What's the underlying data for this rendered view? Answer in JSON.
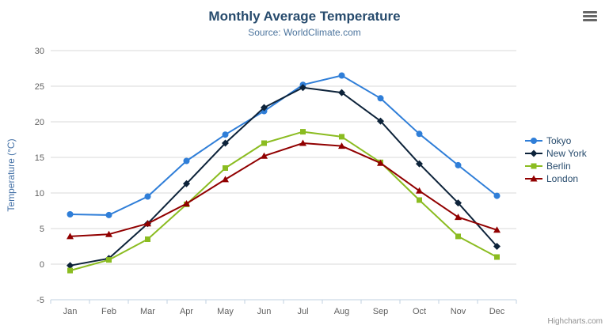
{
  "header": {
    "title": "Monthly Average Temperature",
    "subtitle": "Source: WorldClimate.com"
  },
  "credits": "Highcharts.com",
  "icons": {
    "export_menu": "hamburger-menu-icon"
  },
  "chart_data": {
    "type": "line",
    "title": "Monthly Average Temperature",
    "subtitle": "Source: WorldClimate.com",
    "categories": [
      "Jan",
      "Feb",
      "Mar",
      "Apr",
      "May",
      "Jun",
      "Jul",
      "Aug",
      "Sep",
      "Oct",
      "Nov",
      "Dec"
    ],
    "xlabel": "",
    "ylabel": "Temperature (°C)",
    "ylim": [
      -5,
      30
    ],
    "yticks": [
      -5,
      0,
      5,
      10,
      15,
      20,
      25,
      30
    ],
    "grid": true,
    "legend_position": "right",
    "series": [
      {
        "name": "Tokyo",
        "color": "#2f7ed8",
        "marker": "circle",
        "values": [
          7.0,
          6.9,
          9.5,
          14.5,
          18.2,
          21.5,
          25.2,
          26.5,
          23.3,
          18.3,
          13.9,
          9.6
        ]
      },
      {
        "name": "New York",
        "color": "#0d233a",
        "marker": "diamond",
        "values": [
          -0.2,
          0.8,
          5.7,
          11.3,
          17.0,
          22.0,
          24.8,
          24.1,
          20.1,
          14.1,
          8.6,
          2.5
        ]
      },
      {
        "name": "Berlin",
        "color": "#8bbc21",
        "marker": "square",
        "values": [
          -0.9,
          0.6,
          3.5,
          8.4,
          13.5,
          17.0,
          18.6,
          17.9,
          14.3,
          9.0,
          3.9,
          1.0
        ]
      },
      {
        "name": "London",
        "color": "#910000",
        "marker": "triangle",
        "values": [
          3.9,
          4.2,
          5.7,
          8.5,
          11.9,
          15.2,
          17.0,
          16.6,
          14.2,
          10.3,
          6.6,
          4.8
        ]
      }
    ],
    "axis_colors": {
      "grid_line": "#d8d8d8",
      "axis_line": "#c0d0e0",
      "tick_label": "#606060",
      "y_axis_title": "#4572a7"
    }
  }
}
